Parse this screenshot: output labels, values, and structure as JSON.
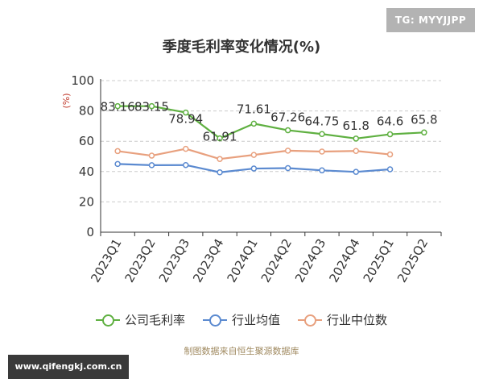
{
  "badge": "TG: MYYJJPP",
  "watermark": "www.qifengkj.com.cn",
  "source": "制图数据来自恒生聚源数据库",
  "chart_data": {
    "type": "line",
    "title": "季度毛利率变化情况(%)",
    "ylabel": "(%)",
    "xlabel": "",
    "ylim": [
      0,
      100
    ],
    "yticks": [
      0,
      20,
      40,
      60,
      80,
      100
    ],
    "grid": true,
    "legend_position": "bottom",
    "categories": [
      "2023Q1",
      "2023Q2",
      "2023Q3",
      "2023Q4",
      "2024Q1",
      "2024Q2",
      "2024Q3",
      "2024Q4",
      "2025Q1",
      "2025Q2"
    ],
    "series": [
      {
        "name": "公司毛利率",
        "color": "#5fb041",
        "values": [
          83.16,
          83.15,
          78.94,
          61.91,
          71.61,
          67.26,
          64.75,
          61.8,
          64.6,
          65.8
        ],
        "labels": [
          "83.16",
          "83.15",
          "78.94",
          "61.91",
          "71.61",
          "67.26",
          "64.75",
          "61.8",
          "64.6",
          "65.8"
        ]
      },
      {
        "name": "行业均值",
        "color": "#5b8ad0",
        "values": [
          45,
          44.2,
          44.3,
          39.5,
          42,
          42.3,
          40.8,
          39.8,
          41.5,
          null
        ]
      },
      {
        "name": "行业中位数",
        "color": "#e8a07e",
        "values": [
          53.5,
          50.5,
          55,
          48.3,
          51,
          53.8,
          53.2,
          53.6,
          51.3,
          null
        ]
      }
    ]
  }
}
